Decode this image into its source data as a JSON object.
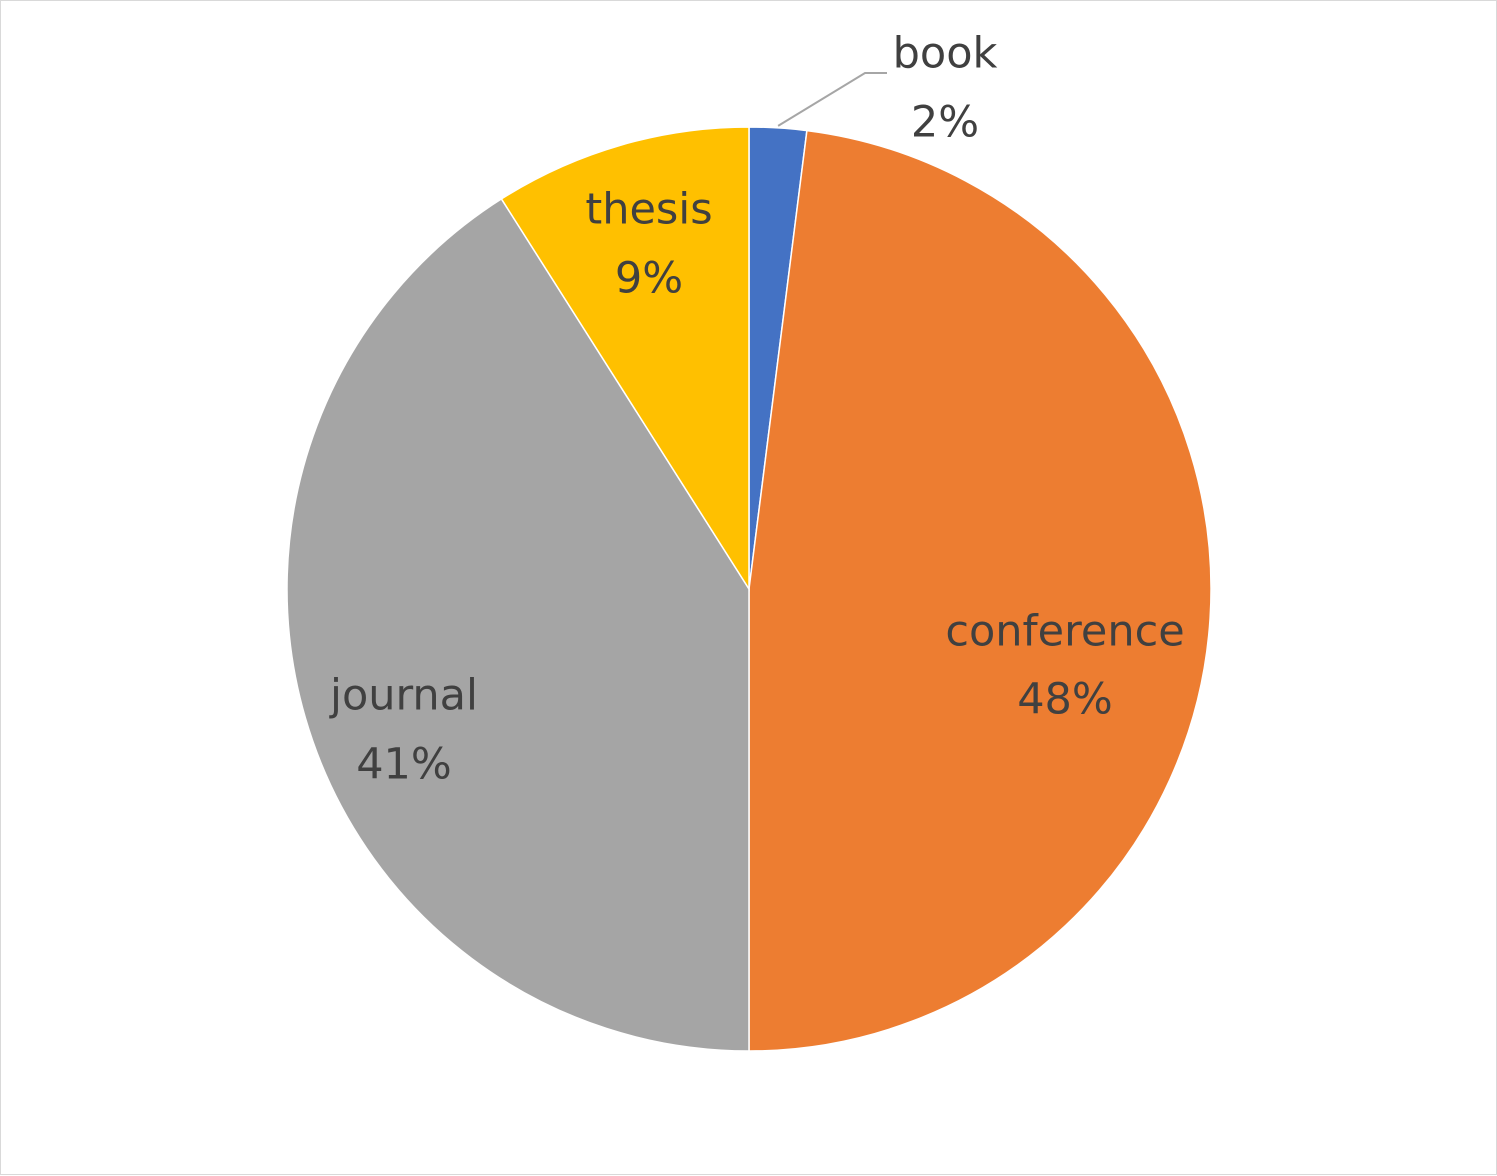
{
  "chart_data": {
    "type": "pie",
    "title": "",
    "slices": [
      {
        "label": "book",
        "value": 2,
        "percent_label": "2%",
        "color": "#4472C4"
      },
      {
        "label": "conference",
        "value": 48,
        "percent_label": "48%",
        "color": "#ED7D31"
      },
      {
        "label": "journal",
        "value": 41,
        "percent_label": "41%",
        "color": "#A5A5A5"
      },
      {
        "label": "thesis",
        "value": 9,
        "percent_label": "9%",
        "color": "#FFC000"
      }
    ],
    "start_angle_deg": 0,
    "direction": "clockwise",
    "legend": "none",
    "data_labels": "category and percentage"
  }
}
